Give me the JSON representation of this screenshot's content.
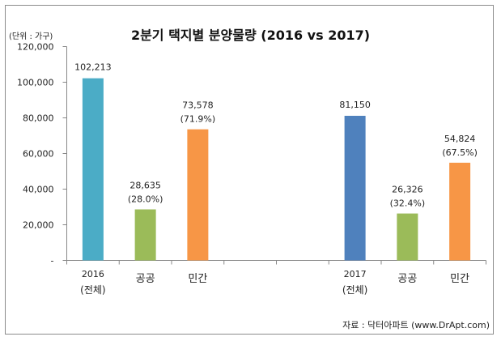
{
  "chart_data": {
    "type": "bar",
    "title": "2분기 택지별 분양물량 (2016 vs 2017)",
    "unit_label": "(단위 : 가구)",
    "source": "자료 : 닥터아파트 (www.DrApt.com)",
    "xlabel": "",
    "ylabel": "",
    "ylim": [
      0,
      120000
    ],
    "yticks": [
      0,
      20000,
      40000,
      60000,
      80000,
      100000,
      120000
    ],
    "ytick_labels": [
      "-",
      "20,000",
      "40,000",
      "60,000",
      "80,000",
      "100,000",
      "120,000"
    ],
    "grid": false,
    "legend": "none",
    "categories": [
      {
        "label_line1": "2016",
        "label_line2": "(전체)"
      },
      {
        "label_line1": "공공",
        "label_line2": ""
      },
      {
        "label_line1": "민간",
        "label_line2": ""
      },
      {
        "label_line1": "",
        "label_line2": ""
      },
      {
        "label_line1": "",
        "label_line2": ""
      },
      {
        "label_line1": "2017",
        "label_line2": "(전체)"
      },
      {
        "label_line1": "공공",
        "label_line2": ""
      },
      {
        "label_line1": "민간",
        "label_line2": ""
      }
    ],
    "bars": [
      {
        "category_index": 0,
        "value": 102213,
        "label": "102,213",
        "pct": "",
        "color": "#4BACC6"
      },
      {
        "category_index": 1,
        "value": 28635,
        "label": "28,635",
        "pct": "(28.0%)",
        "color": "#9BBB59"
      },
      {
        "category_index": 2,
        "value": 73578,
        "label": "73,578",
        "pct": "(71.9%)",
        "color": "#F79646"
      },
      {
        "category_index": 5,
        "value": 81150,
        "label": "81,150",
        "pct": "",
        "color": "#4F81BD"
      },
      {
        "category_index": 6,
        "value": 26326,
        "label": "26,326",
        "pct": "(32.4%)",
        "color": "#9BBB59"
      },
      {
        "category_index": 7,
        "value": 54824,
        "label": "54,824",
        "pct": "(67.5%)",
        "color": "#F79646"
      }
    ]
  }
}
